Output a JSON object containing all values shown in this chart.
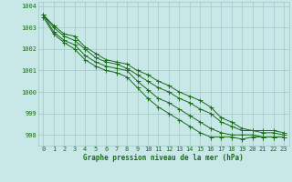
{
  "xlabel": "Graphe pression niveau de la mer (hPa)",
  "x": [
    0,
    1,
    2,
    3,
    4,
    5,
    6,
    7,
    8,
    9,
    10,
    11,
    12,
    13,
    14,
    15,
    16,
    17,
    18,
    19,
    20,
    21,
    22,
    23
  ],
  "lines": [
    [
      1003.6,
      1003.1,
      1002.7,
      1002.6,
      1002.1,
      1001.8,
      1001.5,
      1001.4,
      1001.3,
      1001.0,
      1000.8,
      1000.5,
      1000.3,
      1000.0,
      999.8,
      999.6,
      999.3,
      998.8,
      998.6,
      998.3,
      998.2,
      998.2,
      998.2,
      998.1
    ],
    [
      1003.6,
      1003.0,
      1002.6,
      1002.4,
      1002.0,
      1001.6,
      1001.4,
      1001.3,
      1001.1,
      1000.8,
      1000.5,
      1000.2,
      1000.0,
      999.7,
      999.5,
      999.2,
      999.0,
      998.6,
      998.4,
      998.2,
      998.2,
      998.1,
      998.1,
      998.0
    ],
    [
      1003.6,
      1002.8,
      1002.4,
      1002.2,
      1001.7,
      1001.4,
      1001.2,
      1001.1,
      1001.0,
      1000.5,
      1000.1,
      999.7,
      999.5,
      999.2,
      998.9,
      998.6,
      998.3,
      998.1,
      998.0,
      998.0,
      998.0,
      997.9,
      997.9,
      997.9
    ],
    [
      1003.5,
      1002.7,
      1002.3,
      1002.0,
      1001.5,
      1001.2,
      1001.0,
      1000.9,
      1000.7,
      1000.2,
      999.7,
      999.3,
      999.0,
      998.7,
      998.4,
      998.1,
      997.9,
      997.9,
      997.9,
      997.8,
      997.9,
      997.9,
      997.9,
      997.9
    ]
  ],
  "line_color": "#1a6b1a",
  "bg_color": "#c8e8e8",
  "grid_color": "#98c0c0",
  "text_color": "#1a6b1a",
  "ylim": [
    997.5,
    1004.2
  ],
  "yticks": [
    998,
    999,
    1000,
    1001,
    1002,
    1003,
    1004
  ],
  "markersize": 2.0,
  "linewidth": 0.7,
  "tick_fontsize": 5.0,
  "label_fontsize": 5.5
}
